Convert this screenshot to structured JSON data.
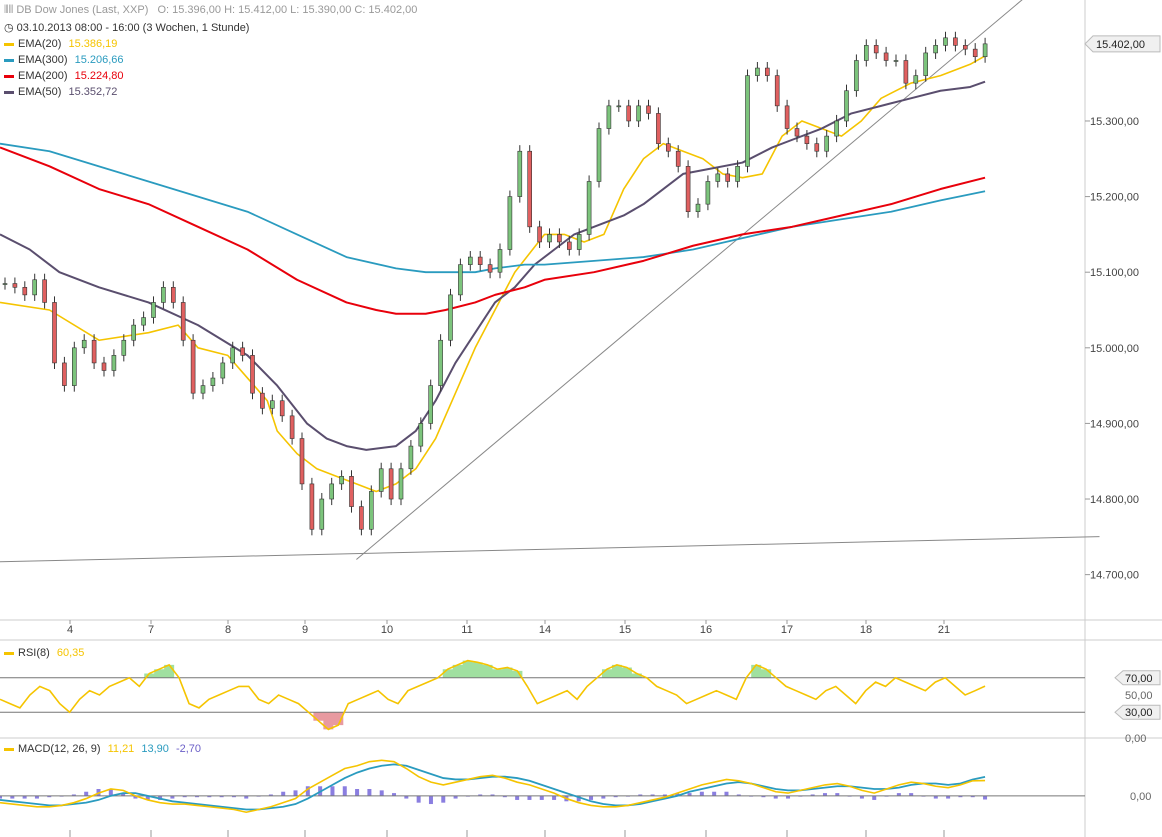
{
  "header": {
    "title": "DB Dow Jones (Last, XXP)",
    "ohlc": "O: 15.396,00   H: 15.412,00   L: 15.390,00   C: 15.402,00",
    "period": "03.10.2013 08:00 - 16:00 (3 Wochen, 1 Stunde)"
  },
  "legend": [
    {
      "label": "EMA(20)",
      "value": "15.386,19",
      "color": "#f5c400"
    },
    {
      "label": "EMA(300)",
      "value": "15.206,66",
      "color": "#2a9bbf"
    },
    {
      "label": "EMA(200)",
      "value": "15.224,80",
      "color": "#e8000b"
    },
    {
      "label": "EMA(50)",
      "value": "15.352,72",
      "color": "#5a4e6e"
    }
  ],
  "rsi_panel": {
    "label": "RSI(8)",
    "value": "60,35",
    "color": "#f5c400"
  },
  "macd_panel": {
    "label": "MACD(12, 26, 9)",
    "v1": "11,21",
    "v2": "13,90",
    "v3": "-2,70",
    "c1": "#f5c400",
    "c2": "#2a9bbf",
    "c3": "#6b5fc7"
  },
  "chart_data": {
    "type": "line",
    "x_tick_labels": [
      "4",
      "7",
      "8",
      "9",
      "10",
      "11",
      "14",
      "15",
      "16",
      "17",
      "18",
      "21"
    ],
    "y_tick_labels": [
      "15.300,00",
      "15.200,00",
      "15.100,00",
      "15.000,00",
      "14.900,00",
      "14.800,00",
      "14.700,00"
    ],
    "y_ticks": [
      15300,
      15200,
      15100,
      15000,
      14900,
      14800,
      14700
    ],
    "ylim": [
      14640,
      15460
    ],
    "last_price_label": "15.402,00",
    "last_price": 15402,
    "x": [
      0,
      2,
      4,
      6,
      8,
      10,
      12,
      14,
      16,
      18,
      20,
      22,
      24,
      26,
      28,
      30,
      32,
      34,
      36,
      38,
      40,
      42,
      44,
      46,
      48,
      50,
      52,
      54,
      56,
      58,
      60,
      62,
      64,
      66,
      68,
      70,
      72,
      74,
      76,
      78,
      80,
      82,
      84,
      86,
      88,
      90,
      92,
      94,
      96,
      98,
      100,
      102,
      104,
      106,
      108,
      110,
      112,
      114,
      116,
      118,
      120,
      122,
      124,
      126,
      128,
      130,
      132,
      134,
      136,
      138,
      140,
      142,
      144,
      146,
      148,
      150,
      152,
      154,
      156,
      158,
      160,
      162,
      164,
      166,
      168,
      170,
      172,
      174,
      176,
      178,
      180,
      182,
      184,
      186,
      188,
      190,
      192,
      194,
      196,
      198
    ],
    "price": [
      15085,
      15080,
      15070,
      15090,
      15060,
      14980,
      14950,
      15000,
      15010,
      14980,
      14970,
      14990,
      15010,
      15030,
      15040,
      15060,
      15080,
      15060,
      15010,
      14940,
      14950,
      14960,
      14980,
      15000,
      14990,
      14940,
      14920,
      14930,
      14910,
      14880,
      14820,
      14760,
      14800,
      14820,
      14830,
      14790,
      14760,
      14810,
      14840,
      14800,
      14840,
      14870,
      14900,
      14950,
      15010,
      15070,
      15110,
      15120,
      15110,
      15100,
      15130,
      15200,
      15260,
      15160,
      15140,
      15150,
      15140,
      15130,
      15150,
      15220,
      15290,
      15320,
      15320,
      15300,
      15320,
      15310,
      15270,
      15260,
      15240,
      15180,
      15190,
      15220,
      15230,
      15220,
      15240,
      15360,
      15370,
      15360,
      15320,
      15290,
      15280,
      15270,
      15260,
      15280,
      15300,
      15340,
      15380,
      15400,
      15390,
      15380,
      15380,
      15350,
      15360,
      15390,
      15400,
      15410,
      15400,
      15395,
      15385,
      15402
    ],
    "series": [
      {
        "name": "EMA(20)",
        "color": "#f5c400",
        "width": 1.6,
        "x": [
          0,
          10,
          20,
          30,
          36,
          40,
          46,
          50,
          54,
          56,
          60,
          64,
          68,
          72,
          76,
          80,
          84,
          88,
          92,
          96,
          100,
          104,
          110,
          114,
          118,
          122,
          126,
          130,
          134,
          138,
          142,
          146,
          150,
          154,
          158,
          162,
          166,
          170,
          174,
          178,
          184,
          190,
          196,
          199
        ],
        "y": [
          15060,
          15050,
          15010,
          15020,
          15030,
          15000,
          14990,
          14960,
          14930,
          14890,
          14860,
          14840,
          14830,
          14820,
          14810,
          14820,
          14840,
          14880,
          14940,
          15000,
          15050,
          15100,
          15150,
          15150,
          15140,
          15150,
          15210,
          15250,
          15270,
          15260,
          15250,
          15230,
          15225,
          15230,
          15280,
          15300,
          15290,
          15280,
          15300,
          15330,
          15350,
          15360,
          15375,
          15386
        ]
      },
      {
        "name": "EMA(50)",
        "color": "#5a4e6e",
        "width": 2,
        "x": [
          0,
          6,
          12,
          20,
          30,
          40,
          50,
          56,
          62,
          66,
          70,
          74,
          80,
          84,
          88,
          92,
          96,
          100,
          104,
          108,
          112,
          116,
          120,
          126,
          130,
          134,
          138,
          142,
          150,
          156,
          160,
          166,
          172,
          178,
          184,
          190,
          196,
          199
        ],
        "y": [
          15150,
          15130,
          15100,
          15080,
          15060,
          15030,
          14990,
          14950,
          14900,
          14880,
          14870,
          14865,
          14870,
          14890,
          14930,
          14980,
          15020,
          15060,
          15080,
          15110,
          15130,
          15150,
          15160,
          15175,
          15190,
          15210,
          15230,
          15235,
          15245,
          15265,
          15275,
          15290,
          15310,
          15320,
          15330,
          15340,
          15345,
          15352
        ]
      },
      {
        "name": "EMA(300)",
        "color": "#2a9bbf",
        "width": 1.8,
        "x": [
          0,
          10,
          20,
          30,
          40,
          50,
          60,
          70,
          80,
          86,
          90,
          96,
          100,
          106,
          110,
          120,
          130,
          140,
          150,
          160,
          170,
          180,
          190,
          199
        ],
        "y": [
          15270,
          15260,
          15240,
          15220,
          15200,
          15180,
          15150,
          15120,
          15105,
          15100,
          15100,
          15100,
          15105,
          15110,
          15110,
          15115,
          15120,
          15130,
          15145,
          15160,
          15170,
          15180,
          15195,
          15207
        ]
      },
      {
        "name": "EMA(200)",
        "color": "#e8000b",
        "width": 2,
        "x": [
          0,
          10,
          20,
          30,
          40,
          50,
          60,
          70,
          76,
          80,
          86,
          90,
          96,
          100,
          106,
          110,
          120,
          130,
          140,
          150,
          160,
          170,
          180,
          190,
          199
        ],
        "y": [
          15265,
          15240,
          15210,
          15190,
          15160,
          15130,
          15090,
          15060,
          15050,
          15045,
          15045,
          15050,
          15060,
          15070,
          15080,
          15090,
          15100,
          15115,
          15135,
          15150,
          15160,
          15175,
          15190,
          15210,
          15225
        ]
      }
    ],
    "trendlines": [
      {
        "x": [
          0,
          199.9
        ],
        "y": [
          14717,
          14747
        ]
      },
      {
        "x": [
          72,
          199.9
        ],
        "y": [
          14720,
          15424
        ]
      }
    ]
  },
  "rsi_data": {
    "type": "line",
    "y_tick_labels": [
      "70,00",
      "50,00",
      "30,00",
      "0,00"
    ],
    "y_ticks": [
      70,
      50,
      30,
      0
    ],
    "ylim": [
      0,
      100
    ],
    "levels": [
      70,
      30
    ],
    "values": [
      45,
      40,
      35,
      50,
      60,
      55,
      40,
      30,
      45,
      55,
      50,
      60,
      65,
      70,
      60,
      75,
      80,
      85,
      70,
      40,
      35,
      45,
      50,
      55,
      60,
      60,
      45,
      40,
      50,
      45,
      40,
      30,
      20,
      10,
      15,
      40,
      45,
      50,
      55,
      45,
      40,
      55,
      60,
      65,
      70,
      80,
      85,
      90,
      88,
      85,
      80,
      82,
      78,
      60,
      40,
      45,
      50,
      55,
      45,
      60,
      70,
      80,
      85,
      82,
      75,
      70,
      60,
      55,
      50,
      40,
      45,
      50,
      55,
      50,
      45,
      70,
      85,
      80,
      70,
      60,
      55,
      50,
      45,
      55,
      60,
      50,
      40,
      55,
      65,
      60,
      70,
      65,
      60,
      55,
      65,
      70,
      60,
      50,
      55,
      60.35
    ],
    "color": "#f5c400",
    "upper_fill": "#a0e0a0",
    "lower_fill": "#e89aa0"
  },
  "macd_data": {
    "type": "bar",
    "y_tick_labels": [
      "0,00"
    ],
    "ylim": [
      -25,
      35
    ],
    "macd": [
      -5,
      -6,
      -7,
      -8,
      -8,
      -7,
      -5,
      -2,
      2,
      5,
      4,
      0,
      -3,
      -5,
      -6,
      -6,
      -7,
      -8,
      -9,
      -10,
      -12,
      -10,
      -8,
      -5,
      -2,
      5,
      10,
      15,
      20,
      22,
      25,
      26,
      25,
      20,
      14,
      10,
      8,
      10,
      12,
      14,
      15,
      13,
      10,
      8,
      5,
      2,
      -2,
      -5,
      -7,
      -8,
      -8,
      -7,
      -5,
      -3,
      -1,
      2,
      5,
      8,
      10,
      12,
      11,
      9,
      6,
      3,
      2,
      4,
      6,
      8,
      9,
      7,
      4,
      2,
      5,
      8,
      10,
      9,
      7,
      6,
      8,
      11,
      11.21
    ],
    "signal": [
      -3,
      -4,
      -5,
      -6,
      -7,
      -7,
      -6,
      -5,
      -3,
      0,
      2,
      2,
      0,
      -2,
      -4,
      -5,
      -6,
      -7,
      -8,
      -9,
      -10,
      -10,
      -9,
      -8,
      -6,
      -2,
      3,
      8,
      13,
      17,
      20,
      22,
      23,
      22,
      19,
      16,
      13,
      12,
      12,
      13,
      14,
      14,
      13,
      11,
      8,
      5,
      2,
      -1,
      -4,
      -6,
      -7,
      -7,
      -6,
      -4,
      -2,
      0,
      3,
      5,
      7,
      9,
      10,
      9,
      7,
      5,
      4,
      4,
      5,
      6,
      7,
      7,
      6,
      5,
      5,
      6,
      8,
      9,
      9,
      8,
      9,
      12,
      13.9
    ],
    "c_macd": "#f5c400",
    "c_signal": "#2a9bbf",
    "c_hist": "#8a7ee0"
  }
}
